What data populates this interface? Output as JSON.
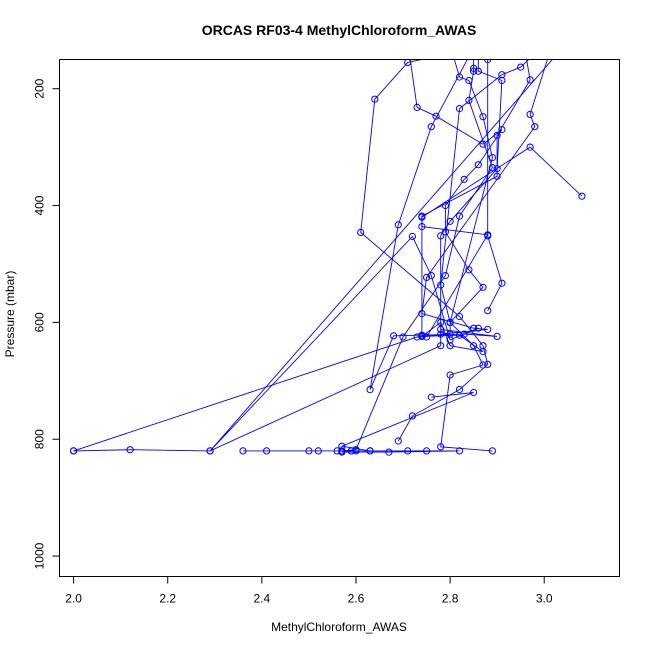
{
  "chart_data": {
    "type": "line",
    "title": "ORCAS RF03-4 MethylChloroform_AWAS",
    "xlabel": "MethylChloroform_AWAS",
    "ylabel": "Pressure (mbar)",
    "xlim": [
      1.97,
      3.16
    ],
    "ylim": [
      1035,
      150
    ],
    "y_reversed": true,
    "x_ticks": [
      2.0,
      2.2,
      2.4,
      2.6,
      2.8,
      3.0
    ],
    "x_tick_labels": [
      "2.0",
      "2.2",
      "2.4",
      "2.6",
      "2.8",
      "3.0"
    ],
    "y_ticks": [
      200,
      400,
      600,
      800,
      1000
    ],
    "y_tick_labels": [
      "200",
      "400",
      "600",
      "800",
      "1000"
    ],
    "color": "#0000ff",
    "grid": false,
    "series": [
      {
        "x": [
          2.95,
          2.71,
          2.64,
          2.61,
          2.82,
          2.87,
          2.88,
          2.82,
          2.72,
          2.69
        ],
        "y": [
          115,
          155,
          218,
          446,
          590,
          640,
          672,
          715,
          760,
          803
        ]
      },
      {
        "x": [
          2.71,
          2.73,
          2.77,
          2.87,
          2.91,
          2.86,
          2.83,
          2.79,
          2.79,
          2.84,
          2.87,
          2.8
        ],
        "y": [
          120,
          232,
          247,
          295,
          270,
          330,
          355,
          400,
          445,
          510,
          540,
          600
        ]
      },
      {
        "x": [
          2.8,
          2.82,
          2.84,
          2.87,
          2.89,
          2.8,
          2.8,
          2.73,
          2.0
        ],
        "y": [
          125,
          180,
          186,
          248,
          318,
          600,
          620,
          625,
          820
        ]
      },
      {
        "x": [
          2.85,
          2.85,
          2.85,
          2.84,
          2.89,
          2.82,
          2.79,
          2.7,
          2.6,
          2.57
        ],
        "y": [
          130,
          165,
          170,
          220,
          335,
          418,
          520,
          625,
          818,
          820
        ]
      },
      {
        "x": [
          2.86,
          2.86,
          2.91,
          2.9,
          2.8,
          2.78,
          2.78,
          2.29,
          2.12,
          2.0
        ],
        "y": [
          135,
          170,
          186,
          337,
          427,
          452,
          640,
          820,
          818,
          820
        ]
      },
      {
        "x": [
          2.96,
          2.97,
          2.9,
          2.9,
          2.74,
          2.74,
          2.88,
          2.75
        ],
        "y": [
          138,
          185,
          280,
          350,
          418,
          436,
          450,
          625
        ]
      },
      {
        "x": [
          2.98,
          2.95,
          2.91,
          2.82,
          2.78,
          2.8,
          2.85,
          2.87,
          2.8,
          2.78,
          2.89
        ],
        "y": [
          140,
          163,
          176,
          234,
          536,
          600,
          640,
          673,
          690,
          813,
          820
        ]
      },
      {
        "x": [
          3.01,
          2.97,
          2.98,
          2.75,
          2.74,
          2.85,
          2.88,
          2.78
        ],
        "y": [
          142,
          244,
          265,
          523,
          585,
          610,
          612,
          620
        ]
      },
      {
        "x": [
          3.05,
          2.29,
          2.72,
          2.76,
          2.8,
          2.86
        ],
        "y": [
          120,
          820,
          453,
          520,
          630,
          610
        ]
      },
      {
        "x": [
          2.84,
          2.76,
          2.69,
          2.63,
          2.68,
          2.83,
          2.9,
          2.78
        ],
        "y": [
          145,
          265,
          433,
          715,
          623,
          620,
          624,
          612
        ]
      },
      {
        "x": [
          2.88,
          2.88,
          2.91,
          2.88
        ],
        "y": [
          150,
          452,
          533,
          580
        ]
      },
      {
        "x": [
          3.08,
          2.97,
          2.74,
          2.74,
          2.78,
          2.8,
          2.87,
          2.82,
          2.74,
          2.74
        ],
        "y": [
          384,
          300,
          420,
          624,
          600,
          640,
          650,
          622,
          624,
          622
        ]
      },
      {
        "x": [
          2.76,
          2.85,
          2.57,
          2.63,
          2.82,
          2.67,
          2.57,
          2.59
        ],
        "y": [
          728,
          720,
          812,
          820,
          820,
          822,
          822,
          820
        ]
      },
      {
        "x": [
          2.36,
          2.41,
          2.5,
          2.52,
          2.56,
          2.57,
          2.59,
          2.6,
          2.63,
          2.71,
          2.75
        ],
        "y": [
          820,
          820,
          820,
          820,
          820,
          820,
          820,
          820,
          820,
          820,
          820
        ]
      }
    ]
  }
}
